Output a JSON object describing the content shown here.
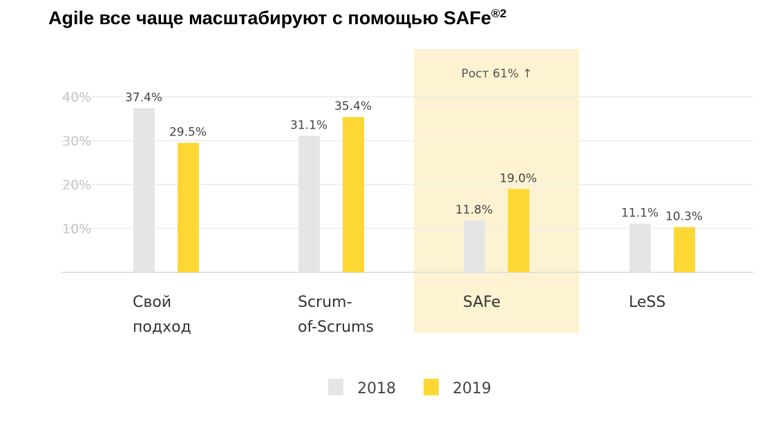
{
  "title": "Agile все чаще масштабируют с помощью SAFe",
  "title_sup": "®2",
  "chart_data": {
    "type": "bar",
    "title": "Agile все чаще масштабируют с помощью SAFe®2",
    "categories": [
      [
        "Свой",
        "подход"
      ],
      [
        "Scrum-",
        "of-Scrums"
      ],
      [
        "SAFe"
      ],
      [
        "LeSS"
      ]
    ],
    "series": [
      {
        "name": "2018",
        "color": "#e5e5e5",
        "values": [
          37.4,
          31.1,
          11.8,
          11.1
        ],
        "labels": [
          "37.4%",
          "31.1%",
          "11.8%",
          "11.1%"
        ]
      },
      {
        "name": "2019",
        "color": "#fdd835",
        "values": [
          29.5,
          35.4,
          19.0,
          10.3
        ],
        "labels": [
          "29.5%",
          "35.4%",
          "19.0%",
          "10.3%"
        ]
      }
    ],
    "yticks": [
      10,
      20,
      30,
      40
    ],
    "ytick_labels": [
      "10%",
      "20%",
      "30%",
      "40%"
    ],
    "ylim": [
      0,
      40
    ],
    "grid": true,
    "highlight": {
      "category": "SAFe",
      "annotation": "Рост 61% ↑",
      "color": "#fdf3d2"
    },
    "legend_position": "bottom-center"
  }
}
